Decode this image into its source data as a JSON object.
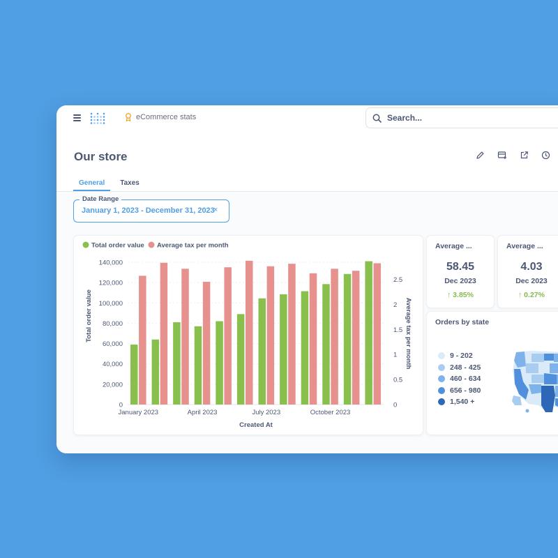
{
  "topbar": {
    "breadcrumb": "eCommerce stats",
    "search_placeholder": "Search..."
  },
  "page": {
    "title": "Our store",
    "tabs": [
      {
        "label": "General",
        "active": true
      },
      {
        "label": "Taxes",
        "active": false
      }
    ]
  },
  "filter": {
    "label": "Date Range",
    "value": "January 1, 2023 - December 31, 2023",
    "clear": "×"
  },
  "stats": [
    {
      "title": "Average ...",
      "value": "58.45",
      "period": "Dec 2023",
      "change": "↑  3.85%"
    },
    {
      "title": "Average ...",
      "value": "4.03",
      "period": "Dec 2023",
      "change": "↑  0.27%"
    }
  ],
  "map": {
    "title": "Orders by state",
    "legend": [
      {
        "label": "9 - 202",
        "color": "#dbeaf9"
      },
      {
        "label": "248 - 425",
        "color": "#a9cdf1"
      },
      {
        "label": "460 - 634",
        "color": "#7db3ea"
      },
      {
        "label": "656 - 980",
        "color": "#4f8fdc"
      },
      {
        "label": "1,540 +",
        "color": "#2e67b8"
      }
    ]
  },
  "colors": {
    "brand": "#509ee3",
    "bar_green": "#88bf4d",
    "bar_red": "#e6918d",
    "positive": "#84bb4c",
    "background": "#509ee3"
  },
  "chart_data": {
    "type": "bar",
    "legend": [
      "Total order value",
      "Average tax per month"
    ],
    "xlabel": "Created At",
    "ylabel_left": "Total order value",
    "ylabel_right": "Average tax per month",
    "x_ticks": [
      "January 2023",
      "April 2023",
      "July 2023",
      "October 2023"
    ],
    "y_ticks_left": [
      "0",
      "20,000",
      "40,000",
      "60,000",
      "80,000",
      "100,000",
      "120,000",
      "140,000"
    ],
    "y_ticks_right": [
      "0",
      "0.5",
      "1",
      "1.5",
      "2",
      "2.5"
    ],
    "ylim_left": [
      0,
      140000
    ],
    "ylim_right": [
      0,
      2.84
    ],
    "categories": [
      "Jan 2023",
      "Feb 2023",
      "Mar 2023",
      "Apr 2023",
      "May 2023",
      "Jun 2023",
      "Jul 2023",
      "Aug 2023",
      "Sep 2023",
      "Oct 2023",
      "Nov 2023",
      "Dec 2023"
    ],
    "series": [
      {
        "name": "Total order value",
        "axis": "left",
        "values": [
          59000,
          64000,
          81000,
          77000,
          82000,
          89000,
          104500,
          108500,
          111500,
          118500,
          128500,
          141000
        ]
      },
      {
        "name": "Average tax per month",
        "axis": "right",
        "values": [
          2.57,
          2.83,
          2.71,
          2.45,
          2.74,
          2.87,
          2.76,
          2.81,
          2.62,
          2.71,
          2.67,
          2.82
        ]
      }
    ],
    "grid": true,
    "legend_position": "top-left"
  }
}
